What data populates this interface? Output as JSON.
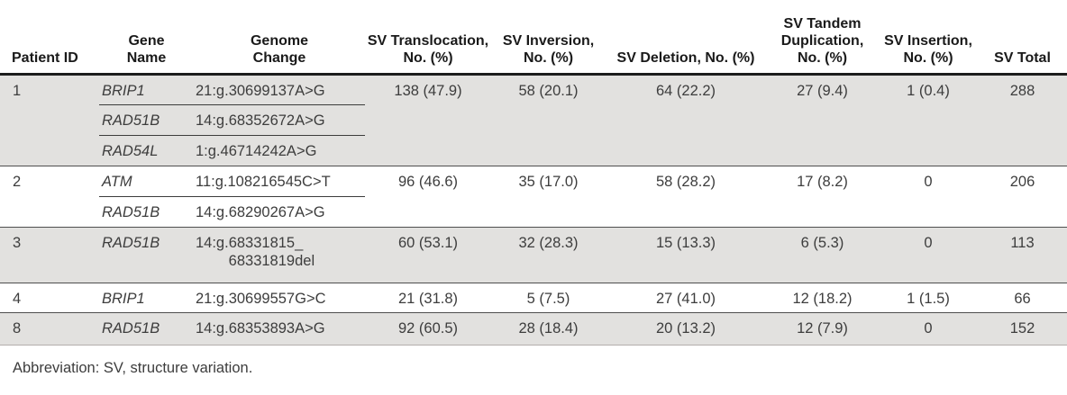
{
  "table": {
    "title_hint": "Structure variation summary per patient",
    "columns": [
      {
        "key": "patient",
        "label": "Patient ID"
      },
      {
        "key": "gene",
        "label": "Gene\nName"
      },
      {
        "key": "genome",
        "label": "Genome\nChange"
      },
      {
        "key": "translocation",
        "label": "SV Translocation,\nNo. (%)"
      },
      {
        "key": "inversion",
        "label": "SV Inversion,\nNo. (%)"
      },
      {
        "key": "deletion",
        "label": "SV Deletion, No. (%)"
      },
      {
        "key": "tandem",
        "label": "SV Tandem\nDuplication,\nNo. (%)"
      },
      {
        "key": "insertion",
        "label": "SV Insertion,\nNo. (%)"
      },
      {
        "key": "total",
        "label": "SV Total"
      }
    ],
    "rows": [
      {
        "patient": "1",
        "shaded": true,
        "genes": [
          {
            "gene": "BRIP1",
            "genome": "21:g.30699137A>G"
          },
          {
            "gene": "RAD51B",
            "genome": "14:g.68352672A>G"
          },
          {
            "gene": "RAD54L",
            "genome": "1:g.46714242A>G"
          }
        ],
        "translocation": "138 (47.9)",
        "inversion": "58 (20.1)",
        "deletion": "64 (22.2)",
        "tandem": "27 (9.4)",
        "insertion": "1 (0.4)",
        "total": "288"
      },
      {
        "patient": "2",
        "shaded": false,
        "genes": [
          {
            "gene": "ATM",
            "genome": "11:g.108216545C>T"
          },
          {
            "gene": "RAD51B",
            "genome": "14:g.68290267A>G"
          }
        ],
        "translocation": "96 (46.6)",
        "inversion": "35 (17.0)",
        "deletion": "58 (28.2)",
        "tandem": "17 (8.2)",
        "insertion": "0",
        "total": "206"
      },
      {
        "patient": "3",
        "shaded": true,
        "genes": [
          {
            "gene": "RAD51B",
            "genome": "14:g.68331815_\n        68331819del"
          }
        ],
        "translocation": "60 (53.1)",
        "inversion": "32 (28.3)",
        "deletion": "15 (13.3)",
        "tandem": "6 (5.3)",
        "insertion": "0",
        "total": "113"
      },
      {
        "patient": "4",
        "shaded": false,
        "genes": [
          {
            "gene": "BRIP1",
            "genome": "21:g.30699557G>C"
          }
        ],
        "translocation": "21 (31.8)",
        "inversion": "5 (7.5)",
        "deletion": "27 (41.0)",
        "tandem": "12 (18.2)",
        "insertion": "1 (1.5)",
        "total": "66"
      },
      {
        "patient": "8",
        "shaded": true,
        "genes": [
          {
            "gene": "RAD51B",
            "genome": "14:g.68353893A>G"
          }
        ],
        "translocation": "92 (60.5)",
        "inversion": "28 (18.4)",
        "deletion": "20 (13.2)",
        "tandem": "12 (7.9)",
        "insertion": "0",
        "total": "152"
      }
    ],
    "footnote": "Abbreviation: SV, structure variation."
  },
  "colors": {
    "row_shading": "#e2e1df",
    "header_rule": "#1c1c1c",
    "text": "#3d3d3d"
  }
}
